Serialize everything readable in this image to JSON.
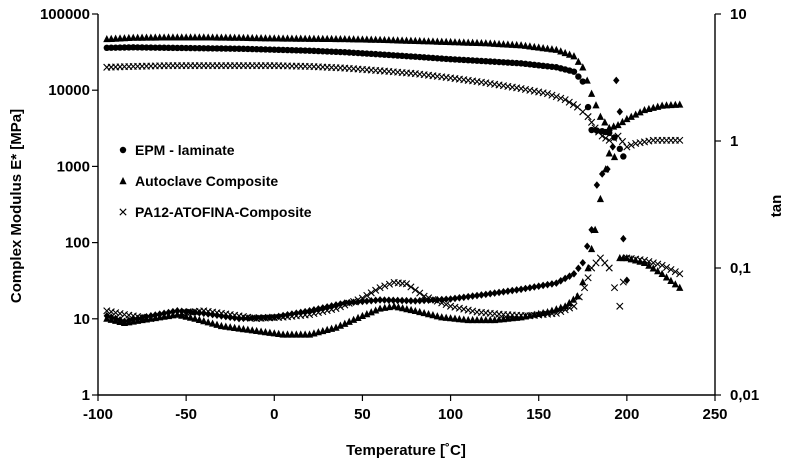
{
  "chart_data": {
    "type": "scatter",
    "xlabel": "Temperature [˚C]",
    "ylabel_left": "Complex Modulus E* [MPa]",
    "ylabel_right": "tan",
    "xlim": [
      -100,
      250
    ],
    "ylim_left": [
      1,
      100000
    ],
    "ylim_right": [
      0.01,
      10
    ],
    "yscale_left": "log",
    "yscale_right": "log",
    "grid": false,
    "legend_position": "center-left",
    "x_ticks": [
      {
        "value": -100,
        "label": "-100"
      },
      {
        "value": -50,
        "label": "-50"
      },
      {
        "value": 0,
        "label": "0"
      },
      {
        "value": 50,
        "label": "50"
      },
      {
        "value": 100,
        "label": "100"
      },
      {
        "value": 150,
        "label": "150"
      },
      {
        "value": 200,
        "label": "200"
      },
      {
        "value": 250,
        "label": "250"
      }
    ],
    "y_ticks_left": [
      {
        "value": 1,
        "label": "1"
      },
      {
        "value": 10,
        "label": "10"
      },
      {
        "value": 100,
        "label": "100"
      },
      {
        "value": 1000,
        "label": "1000"
      },
      {
        "value": 10000,
        "label": "10000"
      },
      {
        "value": 100000,
        "label": "100000"
      }
    ],
    "y_ticks_right": [
      {
        "value": 0.01,
        "label": "0,01"
      },
      {
        "value": 0.1,
        "label": "0,1"
      },
      {
        "value": 1,
        "label": "1"
      },
      {
        "value": 10,
        "label": "10"
      }
    ],
    "series": [
      {
        "name": "EPM - laminate",
        "marker": "circle",
        "quantity": "E*",
        "axis": "left",
        "points": [
          [
            -95,
            36000
          ],
          [
            -80,
            36500
          ],
          [
            -60,
            36000
          ],
          [
            -40,
            35500
          ],
          [
            -20,
            35000
          ],
          [
            0,
            34000
          ],
          [
            20,
            33000
          ],
          [
            40,
            31500
          ],
          [
            60,
            29500
          ],
          [
            80,
            27500
          ],
          [
            100,
            25500
          ],
          [
            120,
            24000
          ],
          [
            140,
            22500
          ],
          [
            160,
            20000
          ],
          [
            170,
            17500
          ],
          [
            175,
            13000
          ],
          [
            178,
            6000
          ],
          [
            180,
            3000
          ],
          [
            183,
            2950
          ],
          [
            186,
            2900
          ],
          [
            190,
            2750
          ],
          [
            193,
            2400
          ],
          [
            196,
            1700
          ],
          [
            198,
            1350
          ]
        ]
      },
      {
        "name": "EPM - laminate",
        "marker": "diamond",
        "quantity": "tan",
        "axis": "right",
        "points": [
          [
            -95,
            0.042
          ],
          [
            -85,
            0.038
          ],
          [
            -70,
            0.042
          ],
          [
            -55,
            0.046
          ],
          [
            -40,
            0.044
          ],
          [
            -20,
            0.04
          ],
          [
            0,
            0.041
          ],
          [
            20,
            0.046
          ],
          [
            40,
            0.053
          ],
          [
            60,
            0.056
          ],
          [
            80,
            0.055
          ],
          [
            100,
            0.057
          ],
          [
            120,
            0.062
          ],
          [
            140,
            0.068
          ],
          [
            160,
            0.076
          ],
          [
            170,
            0.09
          ],
          [
            175,
            0.11
          ],
          [
            180,
            0.2
          ],
          [
            183,
            0.45
          ],
          [
            186,
            0.55
          ],
          [
            189,
            0.6
          ],
          [
            192,
            0.9
          ],
          [
            194,
            3
          ],
          [
            196,
            1.7
          ],
          [
            198,
            0.17
          ],
          [
            200,
            0.08
          ]
        ]
      },
      {
        "name": "Autoclave Composite",
        "marker": "triangle",
        "quantity": "E*",
        "axis": "left",
        "points": [
          [
            -95,
            47000
          ],
          [
            -80,
            49000
          ],
          [
            -60,
            49500
          ],
          [
            -40,
            49500
          ],
          [
            -20,
            49000
          ],
          [
            0,
            48000
          ],
          [
            20,
            47500
          ],
          [
            40,
            47000
          ],
          [
            60,
            46000
          ],
          [
            80,
            44500
          ],
          [
            100,
            43000
          ],
          [
            120,
            41500
          ],
          [
            140,
            39000
          ],
          [
            160,
            34000
          ],
          [
            170,
            28000
          ],
          [
            175,
            20000
          ],
          [
            180,
            9000
          ],
          [
            185,
            4500
          ],
          [
            190,
            3200
          ],
          [
            195,
            3500
          ],
          [
            200,
            4200
          ],
          [
            210,
            5500
          ],
          [
            220,
            6300
          ],
          [
            230,
            6500
          ]
        ]
      },
      {
        "name": "Autoclave Composite",
        "marker": "triangle",
        "quantity": "tan",
        "axis": "right",
        "points": [
          [
            -95,
            0.04
          ],
          [
            -85,
            0.037
          ],
          [
            -70,
            0.04
          ],
          [
            -55,
            0.043
          ],
          [
            -45,
            0.04
          ],
          [
            -30,
            0.035
          ],
          [
            -10,
            0.032
          ],
          [
            5,
            0.03
          ],
          [
            20,
            0.03
          ],
          [
            35,
            0.034
          ],
          [
            50,
            0.042
          ],
          [
            60,
            0.048
          ],
          [
            68,
            0.05
          ],
          [
            80,
            0.046
          ],
          [
            95,
            0.041
          ],
          [
            110,
            0.039
          ],
          [
            125,
            0.039
          ],
          [
            140,
            0.041
          ],
          [
            155,
            0.045
          ],
          [
            165,
            0.05
          ],
          [
            172,
            0.06
          ],
          [
            178,
            0.1
          ],
          [
            182,
            0.2
          ],
          [
            185,
            0.35
          ],
          [
            188,
            0.6
          ],
          [
            190,
            0.8
          ],
          [
            193,
            0.75
          ],
          [
            196,
            0.12
          ],
          [
            200,
            0.12
          ],
          [
            210,
            0.11
          ],
          [
            220,
            0.09
          ],
          [
            230,
            0.07
          ]
        ]
      },
      {
        "name": "PA12-ATOFINA-Composite",
        "marker": "x",
        "quantity": "E*",
        "axis": "left",
        "points": [
          [
            -95,
            20000
          ],
          [
            -80,
            20500
          ],
          [
            -60,
            21000
          ],
          [
            -40,
            21000
          ],
          [
            -20,
            21000
          ],
          [
            0,
            21000
          ],
          [
            20,
            20500
          ],
          [
            40,
            19500
          ],
          [
            60,
            18000
          ],
          [
            80,
            16500
          ],
          [
            100,
            14500
          ],
          [
            120,
            12500
          ],
          [
            140,
            10500
          ],
          [
            155,
            9000
          ],
          [
            165,
            7500
          ],
          [
            172,
            6000
          ],
          [
            178,
            4500
          ],
          [
            182,
            3200
          ],
          [
            186,
            2500
          ],
          [
            190,
            2200
          ],
          [
            195,
            2500
          ],
          [
            200,
            1800
          ],
          [
            205,
            2000
          ],
          [
            215,
            2200
          ],
          [
            230,
            2200
          ]
        ]
      },
      {
        "name": "PA12-ATOFINA-Composite",
        "marker": "x",
        "quantity": "tan",
        "axis": "right",
        "points": [
          [
            -95,
            0.046
          ],
          [
            -85,
            0.043
          ],
          [
            -70,
            0.04
          ],
          [
            -55,
            0.044
          ],
          [
            -40,
            0.046
          ],
          [
            -25,
            0.043
          ],
          [
            -10,
            0.04
          ],
          [
            5,
            0.041
          ],
          [
            20,
            0.043
          ],
          [
            35,
            0.048
          ],
          [
            50,
            0.058
          ],
          [
            60,
            0.07
          ],
          [
            68,
            0.077
          ],
          [
            75,
            0.075
          ],
          [
            85,
            0.06
          ],
          [
            100,
            0.05
          ],
          [
            115,
            0.045
          ],
          [
            130,
            0.043
          ],
          [
            145,
            0.042
          ],
          [
            160,
            0.044
          ],
          [
            170,
            0.05
          ],
          [
            176,
            0.07
          ],
          [
            180,
            0.1
          ],
          [
            185,
            0.12
          ],
          [
            190,
            0.1
          ],
          [
            193,
            0.07
          ],
          [
            196,
            0.05
          ],
          [
            200,
            0.12
          ],
          [
            210,
            0.115
          ],
          [
            220,
            0.105
          ],
          [
            230,
            0.09
          ]
        ]
      }
    ],
    "legend": [
      {
        "label": "EPM - laminate",
        "marker": "circle"
      },
      {
        "label": "Autoclave Composite",
        "marker": "triangle"
      },
      {
        "label": "PA12-ATOFINA-Composite",
        "marker": "x"
      }
    ]
  }
}
